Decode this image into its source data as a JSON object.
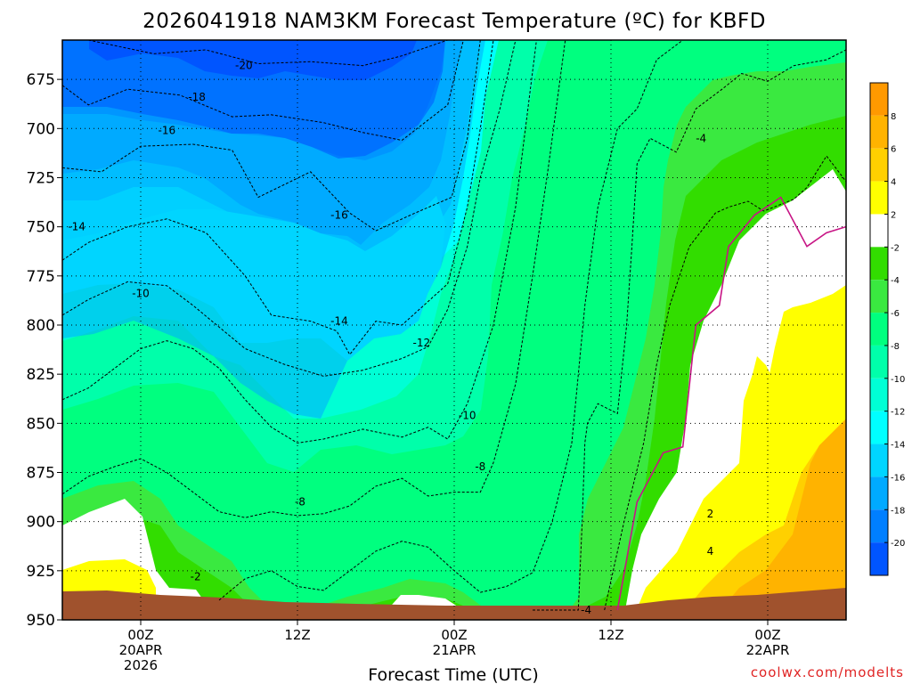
{
  "chart_data": {
    "type": "contour-time-height",
    "title": "2026041918 NAM3KM Forecast Temperature (ºC) for KBFD",
    "xlabel": "Forecast Time (UTC)",
    "ylabel": "",
    "credit": "coolwx.com/modelts",
    "y_axis": {
      "ticks": [
        "675",
        "700",
        "725",
        "750",
        "775",
        "800",
        "825",
        "850",
        "875",
        "900",
        "925",
        "950"
      ],
      "ylim": [
        950,
        655
      ]
    },
    "x_axis": {
      "ticks": [
        {
          "hour": 6,
          "lines": [
            "00Z",
            "20APR",
            "2026"
          ]
        },
        {
          "hour": 18,
          "lines": [
            "12Z"
          ]
        },
        {
          "hour": 30,
          "lines": [
            "00Z",
            "21APR"
          ]
        },
        {
          "hour": 42,
          "lines": [
            "12Z"
          ]
        },
        {
          "hour": 54,
          "lines": [
            "00Z",
            "22APR"
          ]
        }
      ],
      "xlim": [
        0,
        60
      ]
    },
    "colorbar": {
      "labels": [
        "8",
        "6",
        "4",
        "2",
        "-2",
        "-4",
        "-6",
        "-8",
        "-10",
        "-12",
        "-14",
        "-16",
        "-18",
        "-20"
      ],
      "colors": [
        "#ff9900",
        "#ffb300",
        "#ffd000",
        "#ffff00",
        "#ffffff",
        "#32dd00",
        "#3ae940",
        "#00ff7f",
        "#00ffaa",
        "#00ffd5",
        "#00ffff",
        "#00d5ff",
        "#00aaff",
        "#007fff",
        "#0055ff"
      ]
    },
    "contour_labels": [
      {
        "text": "-20",
        "hour": 13.9,
        "p": 668
      },
      {
        "text": "-18",
        "hour": 10.3,
        "p": 684
      },
      {
        "text": "-16",
        "hour": 8.0,
        "p": 701
      },
      {
        "text": "-16",
        "hour": 21.2,
        "p": 744
      },
      {
        "text": "-14",
        "hour": 1.1,
        "p": 750
      },
      {
        "text": "-14",
        "hour": 21.2,
        "p": 798
      },
      {
        "text": "-12",
        "hour": 27.5,
        "p": 809
      },
      {
        "text": "-10",
        "hour": 6.0,
        "p": 784
      },
      {
        "text": "-10",
        "hour": 31.0,
        "p": 846
      },
      {
        "text": "-8",
        "hour": 18.2,
        "p": 890
      },
      {
        "text": "-8",
        "hour": 32.0,
        "p": 872
      },
      {
        "text": "-4",
        "hour": 48.9,
        "p": 705
      },
      {
        "text": "-4",
        "hour": 40.1,
        "p": 945
      },
      {
        "text": "-2",
        "hour": 10.2,
        "p": 928
      },
      {
        "text": "2",
        "hour": 49.6,
        "p": 896
      },
      {
        "text": "4",
        "hour": 49.6,
        "p": 915
      }
    ],
    "series": [
      {
        "name": "-20 isotherm",
        "hour": [
          2,
          7,
          11,
          15,
          19,
          23,
          26,
          29.5
        ],
        "p": [
          655,
          662,
          660,
          667,
          666,
          668,
          663,
          655
        ]
      },
      {
        "name": "-18 isotherm",
        "hour": [
          0,
          2,
          5,
          9,
          13,
          16,
          20,
          23,
          26,
          29.5,
          30.7
        ],
        "p": [
          678,
          688,
          680,
          683,
          694,
          693,
          697,
          702,
          706,
          688,
          655
        ]
      },
      {
        "name": "-16 isotherm",
        "hour": [
          0,
          3,
          6,
          10,
          13,
          15,
          19,
          22,
          24,
          27,
          29.8,
          31,
          32
        ],
        "p": [
          720,
          722,
          709,
          708,
          711,
          735,
          722,
          743,
          752,
          743,
          735,
          705,
          655
        ]
      },
      {
        "name": "-14 isotherm",
        "hour": [
          0,
          2,
          5,
          8,
          11,
          14,
          16,
          19,
          21,
          22,
          24,
          26,
          28,
          29.5,
          31,
          32,
          33
        ],
        "p": [
          767,
          758,
          750,
          746,
          753,
          775,
          795,
          798,
          803,
          815,
          798,
          800,
          788,
          779,
          740,
          700,
          655
        ]
      },
      {
        "name": "-12 isotherm",
        "hour": [
          0,
          2,
          5,
          8,
          10,
          12,
          14,
          17,
          20,
          23,
          26,
          28,
          29.5,
          31,
          32,
          33.5,
          34.7
        ],
        "p": [
          795,
          787,
          778,
          780,
          790,
          801,
          812,
          820,
          826,
          823,
          817,
          811,
          792,
          760,
          725,
          690,
          655
        ]
      },
      {
        "name": "-10 isotherm",
        "hour": [
          0,
          2,
          4,
          6,
          8,
          10,
          12,
          14,
          16,
          18,
          20,
          23,
          26,
          28,
          29.5,
          31,
          33,
          34.7,
          36.3
        ],
        "p": [
          838,
          832,
          822,
          812,
          808,
          812,
          822,
          838,
          852,
          860,
          858,
          853,
          857,
          852,
          858,
          840,
          800,
          740,
          655
        ]
      },
      {
        "name": "-8 isotherm",
        "hour": [
          0,
          2,
          4,
          6,
          8,
          10,
          12,
          14,
          16,
          18,
          20,
          22,
          24,
          26,
          28,
          30,
          32,
          33,
          34.7,
          36,
          37.2,
          38.5
        ],
        "p": [
          886,
          877,
          872,
          868,
          875,
          885,
          895,
          898,
          895,
          897,
          896,
          892,
          882,
          878,
          887,
          885,
          885,
          870,
          830,
          775,
          720,
          655
        ]
      },
      {
        "name": "-6 isotherm",
        "hour": [
          12,
          14,
          16,
          18,
          20,
          22,
          24,
          26,
          28,
          30,
          32,
          34,
          36,
          37.5,
          39,
          40,
          41,
          42.5,
          44,
          45.5,
          47.5
        ],
        "p": [
          940,
          929,
          925,
          933,
          935,
          925,
          915,
          910,
          913,
          925,
          936,
          933,
          926,
          900,
          860,
          790,
          740,
          700,
          690,
          665,
          655
        ]
      },
      {
        "name": "-4 isotherm",
        "hour": [
          36,
          38,
          39.5,
          39.8,
          40,
          40.2,
          41,
          42.5,
          43.2,
          43.6,
          44,
          45,
          47,
          48.5,
          50.5,
          52,
          54,
          56,
          58.5,
          60
        ],
        "p": [
          945,
          945,
          945,
          900,
          860,
          850,
          840,
          845,
          800,
          760,
          718,
          705,
          712,
          690,
          680,
          672,
          676,
          668,
          665,
          660
        ]
      },
      {
        "name": "-2 isotherm",
        "hour": [
          41.5,
          43,
          44.5,
          45.5,
          46.5,
          48,
          50,
          51,
          52.5,
          53.7,
          56,
          57,
          58.5,
          59.2,
          60
        ],
        "p": [
          945,
          900,
          860,
          820,
          790,
          760,
          743,
          740,
          737,
          742,
          736,
          730,
          714,
          720,
          727
        ]
      },
      {
        "name": "0 isotherm",
        "hour": [
          42.5,
          44,
          46,
          47.5,
          48.5,
          50.3,
          51,
          53,
          55,
          57,
          58.5,
          60
        ],
        "p": [
          945,
          890,
          865,
          862,
          800,
          790,
          760,
          744,
          735,
          760,
          753,
          750
        ]
      }
    ]
  }
}
